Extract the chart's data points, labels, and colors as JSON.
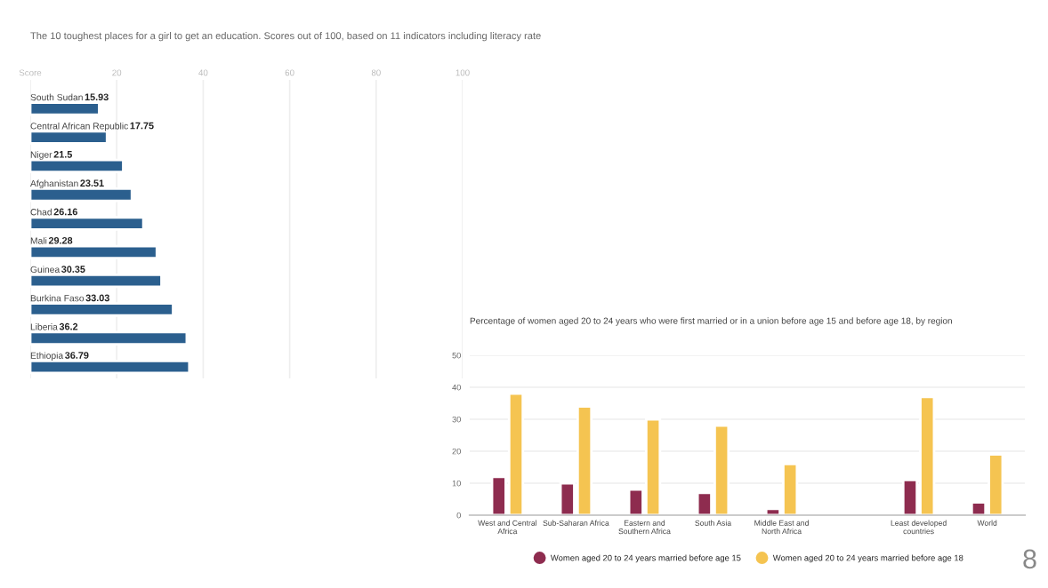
{
  "chart_data": [
    {
      "type": "bar",
      "orientation": "horizontal",
      "title": "The 10 toughest places for a girl to get an education. Scores out of 100, based on 11 indicators including literacy rate",
      "categories": [
        "South Sudan",
        "Central African Republic",
        "Niger",
        "Afghanistan",
        "Chad",
        "Mali",
        "Guinea",
        "Burkina Faso",
        "Liberia",
        "Ethiopia"
      ],
      "values": [
        15.93,
        17.75,
        21.5,
        23.51,
        26.16,
        29.28,
        30.35,
        33.03,
        36.2,
        36.79
      ],
      "color": "#2b5f8e",
      "data_labels": true,
      "xlim": [
        0,
        100
      ],
      "xticks": [
        {
          "value": 0,
          "label": "Score"
        },
        20,
        40,
        60,
        80,
        100
      ],
      "grid": "x"
    },
    {
      "type": "bar",
      "title": "Percentage of women aged 20 to 24 years who were first married or in a union before age 15 and before age 18, by region",
      "categories": [
        "West and Central\nAfrica",
        "Sub-Saharan Africa",
        "Eastern and\nSouthern Africa",
        "South Asia",
        "Middle East and\nNorth Africa",
        null,
        "Least developed\ncountries",
        "World"
      ],
      "series": [
        {
          "name": "Women aged 20 to 24 years married before age 15",
          "color": "#8e2c4f",
          "values": [
            12,
            10,
            8,
            7,
            2,
            null,
            11,
            4
          ]
        },
        {
          "name": "Women aged 20 to 24 years married before age 18",
          "color": "#f5c451",
          "values": [
            38,
            34,
            30,
            28,
            16,
            null,
            37,
            19
          ]
        }
      ],
      "ylim": [
        0,
        50
      ],
      "yticks": [
        0,
        10,
        20,
        30,
        40,
        50
      ],
      "grid": "y",
      "legend": "bottom",
      "annotations": [
        "8"
      ]
    }
  ]
}
